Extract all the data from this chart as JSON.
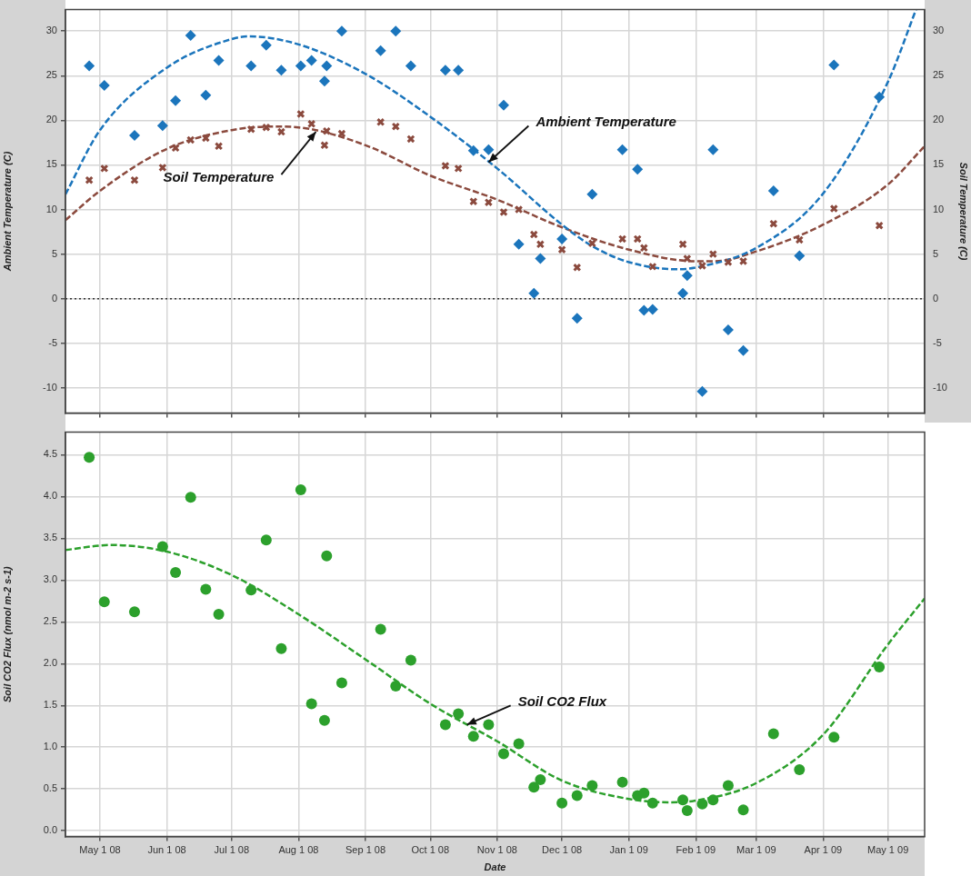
{
  "chart_data": [
    {
      "type": "scatter",
      "ylabel": "Ambient Temperature (C)",
      "y2label": "Soil Temperature (C)",
      "x": [
        "2008-04-26",
        "2008-05-03",
        "2008-05-17",
        "2008-05-30",
        "2008-06-05",
        "2008-06-12",
        "2008-06-19",
        "2008-06-25",
        "2008-07-10",
        "2008-07-17",
        "2008-07-24",
        "2008-08-02",
        "2008-08-07",
        "2008-08-13",
        "2008-08-14",
        "2008-08-21",
        "2008-09-08",
        "2008-09-15",
        "2008-09-22",
        "2008-10-08",
        "2008-10-14",
        "2008-10-21",
        "2008-10-28",
        "2008-11-04",
        "2008-11-11",
        "2008-11-18",
        "2008-11-21",
        "2008-12-01",
        "2008-12-08",
        "2008-12-15",
        "2008-12-29",
        "2009-01-05",
        "2009-01-08",
        "2009-01-12",
        "2009-01-26",
        "2009-01-28",
        "2009-02-04",
        "2009-02-09",
        "2009-02-16",
        "2009-02-23",
        "2009-03-09",
        "2009-03-21",
        "2009-04-06",
        "2009-04-27"
      ],
      "series": [
        {
          "color": "#1b75bc",
          "marker": "diamond",
          "values": [
            26.1,
            23.9,
            18.3,
            19.4,
            22.2,
            29.5,
            22.8,
            26.7,
            26.1,
            28.4,
            25.6,
            26.1,
            26.7,
            24.4,
            26.1,
            30.0,
            27.8,
            30.0,
            26.1,
            25.6,
            25.6,
            16.6,
            16.7,
            21.7,
            6.1,
            0.6,
            4.5,
            6.7,
            -2.2,
            11.7,
            16.7,
            14.5,
            -1.3,
            -1.2,
            0.6,
            2.6,
            -10.4,
            16.7,
            -3.5,
            -5.8,
            12.1,
            4.8,
            26.2,
            22.6
          ]
        },
        {
          "color": "#8b4a3e",
          "marker": "cross",
          "values": [
            13.3,
            14.6,
            13.3,
            14.7,
            16.9,
            17.8,
            18.0,
            17.1,
            19.0,
            19.2,
            18.7,
            20.7,
            19.6,
            17.2,
            18.8,
            18.5,
            19.8,
            19.3,
            17.9,
            14.9,
            14.6,
            10.9,
            10.8,
            9.7,
            10.0,
            7.2,
            6.1,
            5.5,
            3.5,
            6.2,
            6.7,
            6.7,
            5.7,
            3.6,
            6.1,
            4.5,
            3.7,
            5.0,
            4.1,
            4.2,
            8.4,
            6.6,
            10.1,
            8.2
          ]
        },
        {
          "type": "line",
          "color": "#1b75bc",
          "marker": "none",
          "line_style": "dashed",
          "x": [
            "2008-04-15",
            "2008-05-01",
            "2008-06-01",
            "2008-07-01",
            "2008-07-09",
            "2008-08-01",
            "2008-09-01",
            "2008-10-01",
            "2008-11-01",
            "2008-12-01",
            "2008-12-15",
            "2009-01-01",
            "2009-01-24",
            "2009-02-01",
            "2009-03-01",
            "2009-04-01",
            "2009-05-01",
            "2009-05-14"
          ],
          "values": [
            11.7,
            18.9,
            25.9,
            29.1,
            29.4,
            28.5,
            25.2,
            20.4,
            14.6,
            8.3,
            5.9,
            4.1,
            3.3,
            3.5,
            5.7,
            11.8,
            24.3,
            32.4
          ]
        },
        {
          "type": "line",
          "color": "#8b4a3e",
          "marker": "none",
          "line_style": "dashed",
          "x": [
            "2008-04-15",
            "2008-05-01",
            "2008-06-01",
            "2008-07-01",
            "2008-07-20",
            "2008-08-01",
            "2008-09-01",
            "2008-10-01",
            "2008-11-01",
            "2008-12-01",
            "2009-01-01",
            "2009-02-01",
            "2009-02-10",
            "2009-03-01",
            "2009-04-01",
            "2009-05-01",
            "2009-05-18"
          ],
          "values": [
            8.8,
            12.1,
            16.8,
            18.9,
            19.3,
            19.2,
            17.2,
            13.8,
            11.1,
            8.0,
            5.5,
            4.2,
            4.2,
            5.3,
            8.3,
            12.8,
            17.1
          ]
        }
      ],
      "xlim": [
        "2008-04-15",
        "2009-05-18"
      ],
      "xticks": [
        {
          "value": "2008-05-01",
          "label": null
        },
        {
          "value": "2008-06-01",
          "label": null
        },
        {
          "value": "2008-07-01",
          "label": null
        },
        {
          "value": "2008-08-01",
          "label": null
        },
        {
          "value": "2008-09-01",
          "label": null
        },
        {
          "value": "2008-10-01",
          "label": null
        },
        {
          "value": "2008-11-01",
          "label": null
        },
        {
          "value": "2008-12-01",
          "label": null
        },
        {
          "value": "2009-01-01",
          "label": null
        },
        {
          "value": "2009-02-01",
          "label": null
        },
        {
          "value": "2009-03-01",
          "label": null
        },
        {
          "value": "2009-04-01",
          "label": null
        },
        {
          "value": "2009-05-01",
          "label": null
        }
      ],
      "ylim": [
        -12.8,
        32.4
      ],
      "yticks": [
        -10,
        -5,
        0,
        5,
        10,
        15,
        20,
        25,
        30
      ],
      "y2lim": [
        -12.8,
        32.4
      ],
      "y2ticks": [
        -10,
        -5,
        0,
        5,
        10,
        15,
        20,
        25,
        30
      ],
      "ref_lines": [
        {
          "axis": "y",
          "value": 0,
          "color": "#333333",
          "line_style": "dotted"
        }
      ],
      "annotations": [
        {
          "text": "Ambient Temperature",
          "x": "2008-10-28",
          "y": 15.3
        },
        {
          "text": "Soil Temperature",
          "x": "2008-08-09",
          "y": 18.7
        }
      ],
      "grid": true,
      "legend": false,
      "tick_labels": "y"
    },
    {
      "type": "scatter",
      "xlabel": "Date",
      "ylabel": "Soil CO2 Flux (nmol m-2 s-1)",
      "x": [
        "2008-04-26",
        "2008-05-03",
        "2008-05-17",
        "2008-05-30",
        "2008-06-05",
        "2008-06-12",
        "2008-06-19",
        "2008-06-25",
        "2008-07-10",
        "2008-07-17",
        "2008-07-24",
        "2008-08-02",
        "2008-08-07",
        "2008-08-13",
        "2008-08-14",
        "2008-08-21",
        "2008-09-08",
        "2008-09-15",
        "2008-09-22",
        "2008-10-08",
        "2008-10-14",
        "2008-10-21",
        "2008-10-28",
        "2008-11-04",
        "2008-11-11",
        "2008-11-18",
        "2008-11-21",
        "2008-12-01",
        "2008-12-08",
        "2008-12-15",
        "2008-12-29",
        "2009-01-05",
        "2009-01-08",
        "2009-01-12",
        "2009-01-26",
        "2009-01-28",
        "2009-02-04",
        "2009-02-09",
        "2009-02-16",
        "2009-02-23",
        "2009-03-09",
        "2009-03-21",
        "2009-04-06",
        "2009-04-27"
      ],
      "series": [
        {
          "color": "#2ca02c",
          "marker": "circle",
          "values": [
            4.47,
            2.74,
            2.62,
            3.4,
            3.09,
            3.99,
            2.89,
            2.59,
            2.88,
            3.48,
            2.18,
            4.08,
            1.52,
            1.32,
            3.29,
            1.77,
            2.41,
            1.73,
            2.04,
            1.27,
            1.4,
            1.13,
            1.27,
            0.92,
            1.04,
            0.52,
            0.61,
            0.33,
            0.42,
            0.54,
            0.58,
            0.42,
            0.45,
            0.33,
            0.37,
            0.24,
            0.32,
            0.37,
            0.54,
            0.25,
            1.16,
            0.73,
            1.12,
            1.96
          ]
        },
        {
          "type": "line",
          "color": "#2ca02c",
          "marker": "none",
          "line_style": "dashed",
          "x": [
            "2008-04-15",
            "2008-05-06",
            "2008-06-01",
            "2008-07-01",
            "2008-08-01",
            "2008-09-01",
            "2008-10-01",
            "2008-11-01",
            "2008-12-01",
            "2009-01-01",
            "2009-01-20",
            "2009-02-01",
            "2009-03-01",
            "2009-04-01",
            "2009-05-01",
            "2009-05-18"
          ],
          "values": [
            3.36,
            3.42,
            3.34,
            3.06,
            2.59,
            2.05,
            1.52,
            1.07,
            0.6,
            0.38,
            0.34,
            0.36,
            0.57,
            1.15,
            2.23,
            2.78
          ]
        }
      ],
      "xlim": [
        "2008-04-15",
        "2009-05-18"
      ],
      "xticks": [
        {
          "value": "2008-05-01",
          "label": "May 1 08"
        },
        {
          "value": "2008-06-01",
          "label": "Jun 1 08"
        },
        {
          "value": "2008-07-01",
          "label": "Jul 1 08"
        },
        {
          "value": "2008-08-01",
          "label": "Aug 1 08"
        },
        {
          "value": "2008-09-01",
          "label": "Sep 1 08"
        },
        {
          "value": "2008-10-01",
          "label": "Oct 1 08"
        },
        {
          "value": "2008-11-01",
          "label": "Nov 1 08"
        },
        {
          "value": "2008-12-01",
          "label": "Dec 1 08"
        },
        {
          "value": "2009-01-01",
          "label": "Jan 1 09"
        },
        {
          "value": "2009-02-01",
          "label": "Feb 1 09"
        },
        {
          "value": "2009-03-01",
          "label": "Mar 1 09"
        },
        {
          "value": "2009-04-01",
          "label": "Apr 1 09"
        },
        {
          "value": "2009-05-01",
          "label": "May 1 09"
        }
      ],
      "ylim": [
        -0.07,
        4.77
      ],
      "yticks": [
        {
          "value": 0,
          "label": "0.0"
        },
        0.5,
        {
          "value": 1,
          "label": "1.0"
        },
        1.5,
        {
          "value": 2,
          "label": "2.0"
        },
        2.5,
        {
          "value": 3,
          "label": "3.0"
        },
        3.5,
        {
          "value": 4,
          "label": "4.0"
        },
        4.5
      ],
      "annotations": [
        {
          "text": "Soil CO2 Flux",
          "x": "2008-10-18",
          "y": 1.27
        }
      ],
      "grid": true,
      "legend": false
    }
  ]
}
